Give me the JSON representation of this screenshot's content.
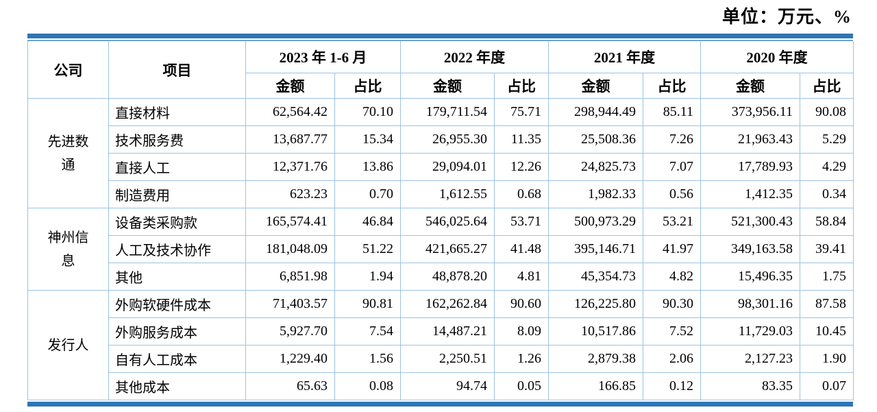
{
  "unit_label": "单位：万元、%",
  "colors": {
    "accent_border": "#2E75B6",
    "accent_border_thin": "#6FA3D8",
    "grid_line": "#9CC2E5"
  },
  "table": {
    "company_header": "公司",
    "item_header": "项目",
    "periods": [
      {
        "label": "2023 年 1-6 月",
        "amount_header": "金额",
        "ratio_header": "占比"
      },
      {
        "label": "2022 年度",
        "amount_header": "金额",
        "ratio_header": "占比"
      },
      {
        "label": "2021 年度",
        "amount_header": "金额",
        "ratio_header": "占比"
      },
      {
        "label": "2020 年度",
        "amount_header": "金额",
        "ratio_header": "占比"
      }
    ],
    "groups": [
      {
        "company": "先进数通",
        "rows": [
          {
            "item": "直接材料",
            "cells": [
              "62,564.42",
              "70.10",
              "179,711.54",
              "75.71",
              "298,944.49",
              "85.11",
              "373,956.11",
              "90.08"
            ]
          },
          {
            "item": "技术服务费",
            "cells": [
              "13,687.77",
              "15.34",
              "26,955.30",
              "11.35",
              "25,508.36",
              "7.26",
              "21,963.43",
              "5.29"
            ]
          },
          {
            "item": "直接人工",
            "cells": [
              "12,371.76",
              "13.86",
              "29,094.01",
              "12.26",
              "24,825.73",
              "7.07",
              "17,789.93",
              "4.29"
            ]
          },
          {
            "item": "制造费用",
            "cells": [
              "623.23",
              "0.70",
              "1,612.55",
              "0.68",
              "1,982.33",
              "0.56",
              "1,412.35",
              "0.34"
            ]
          }
        ]
      },
      {
        "company": "神州信息",
        "rows": [
          {
            "item": "设备类采购款",
            "cells": [
              "165,574.41",
              "46.84",
              "546,025.64",
              "53.71",
              "500,973.29",
              "53.21",
              "521,300.43",
              "58.84"
            ]
          },
          {
            "item": "人工及技术协作",
            "cells": [
              "181,048.09",
              "51.22",
              "421,665.27",
              "41.48",
              "395,146.71",
              "41.97",
              "349,163.58",
              "39.41"
            ]
          },
          {
            "item": "其他",
            "cells": [
              "6,851.98",
              "1.94",
              "48,878.20",
              "4.81",
              "45,354.73",
              "4.82",
              "15,496.35",
              "1.75"
            ]
          }
        ]
      },
      {
        "company": "发行人",
        "rows": [
          {
            "item": "外购软硬件成本",
            "cells": [
              "71,403.57",
              "90.81",
              "162,262.84",
              "90.60",
              "126,225.80",
              "90.30",
              "98,301.16",
              "87.58"
            ]
          },
          {
            "item": "外购服务成本",
            "cells": [
              "5,927.70",
              "7.54",
              "14,487.21",
              "8.09",
              "10,517.86",
              "7.52",
              "11,729.03",
              "10.45"
            ]
          },
          {
            "item": "自有人工成本",
            "cells": [
              "1,229.40",
              "1.56",
              "2,250.51",
              "1.26",
              "2,879.38",
              "2.06",
              "2,127.23",
              "1.90"
            ]
          },
          {
            "item": "其他成本",
            "cells": [
              "65.63",
              "0.08",
              "94.74",
              "0.05",
              "166.85",
              "0.12",
              "83.35",
              "0.07"
            ]
          }
        ]
      }
    ]
  }
}
